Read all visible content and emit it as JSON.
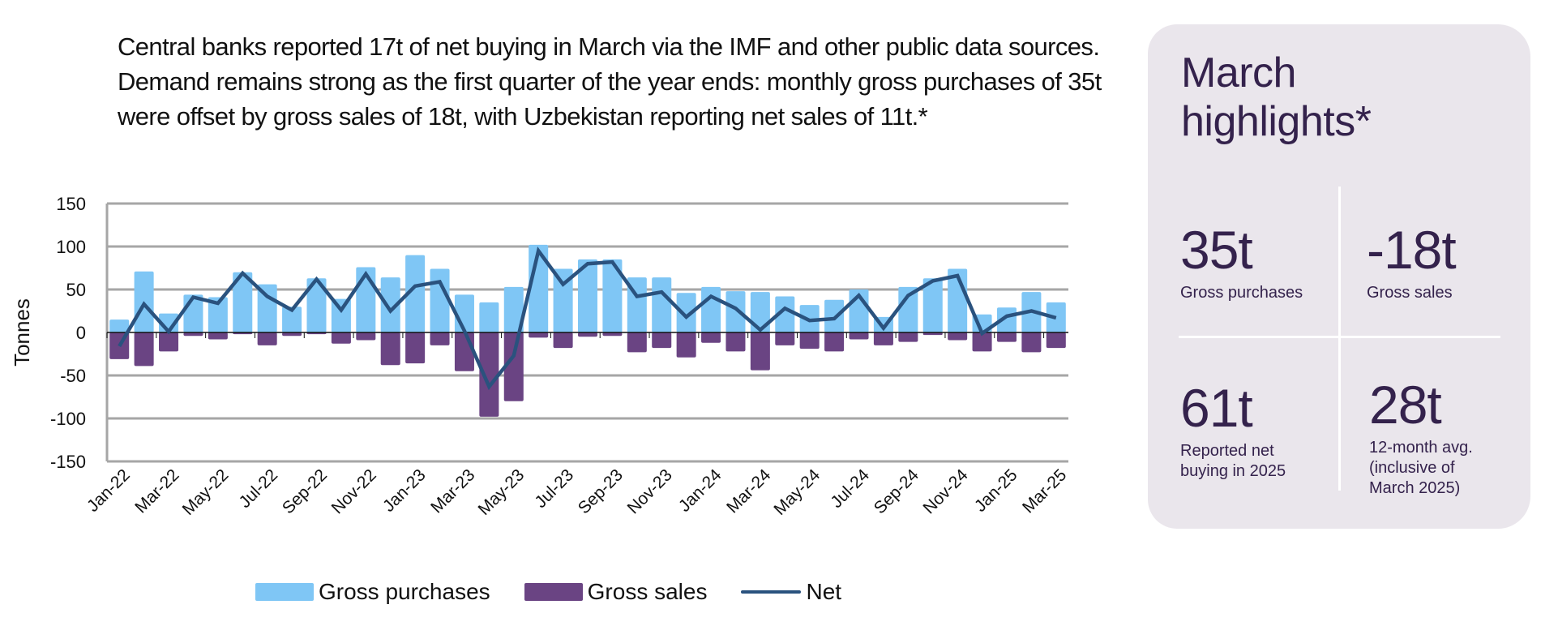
{
  "intro": {
    "text": "Central banks reported 17t of net buying in March via the IMF and other public data sources. Demand remains strong as the first quarter of the year ends: monthly gross purchases of 35t were offset by gross sales of 18t, with Uzbekistan reporting net sales of 11t.*"
  },
  "colors": {
    "gross_purchases": "#7FC6F5",
    "gross_sales": "#6A4483",
    "net": "#2A527E",
    "gridline": "#A6A6A6",
    "panel_bg": "#EAE6EC",
    "panel_text": "#34224C"
  },
  "chart_data": {
    "type": "bar",
    "title": "",
    "xlabel": "",
    "ylabel": "Tonnes",
    "ylim": [
      -150,
      150
    ],
    "yticks": [
      150,
      100,
      50,
      0,
      -50,
      -100,
      -150
    ],
    "grid": true,
    "legend_position": "bottom",
    "categories": [
      "Jan-22",
      "Feb-22",
      "Mar-22",
      "Apr-22",
      "May-22",
      "Jun-22",
      "Jul-22",
      "Aug-22",
      "Sep-22",
      "Oct-22",
      "Nov-22",
      "Dec-22",
      "Jan-23",
      "Feb-23",
      "Mar-23",
      "Apr-23",
      "May-23",
      "Jun-23",
      "Jul-23",
      "Aug-23",
      "Sep-23",
      "Oct-23",
      "Nov-23",
      "Dec-23",
      "Jan-24",
      "Feb-24",
      "Mar-24",
      "Apr-24",
      "May-24",
      "Jun-24",
      "Jul-24",
      "Aug-24",
      "Sep-24",
      "Oct-24",
      "Nov-24",
      "Dec-24",
      "Jan-25",
      "Feb-25",
      "Mar-25"
    ],
    "xtick_labels": [
      "Jan-22",
      "Mar-22",
      "May-22",
      "Jul-22",
      "Sep-22",
      "Nov-22",
      "Jan-23",
      "Mar-23",
      "May-23",
      "Jul-23",
      "Sep-23",
      "Nov-23",
      "Jan-24",
      "Mar-24",
      "May-24",
      "Jul-24",
      "Sep-24",
      "Nov-24",
      "Jan-25",
      "Mar-25"
    ],
    "series": [
      {
        "name": "Gross purchases",
        "kind": "bar",
        "values": [
          15,
          71,
          22,
          44,
          41,
          70,
          56,
          30,
          63,
          39,
          76,
          64,
          90,
          74,
          44,
          35,
          53,
          102,
          74,
          85,
          85,
          64,
          64,
          46,
          53,
          48,
          47,
          42,
          32,
          38,
          50,
          18,
          53,
          63,
          74,
          21,
          29,
          47,
          35
        ]
      },
      {
        "name": "Gross sales",
        "kind": "bar",
        "values": [
          -31,
          -39,
          -22,
          -4,
          -8,
          -2,
          -15,
          -4,
          -2,
          -13,
          -9,
          -38,
          -36,
          -15,
          -45,
          -98,
          -80,
          -6,
          -18,
          -5,
          -4,
          -23,
          -18,
          -29,
          -12,
          -22,
          -44,
          -15,
          -19,
          -22,
          -8,
          -15,
          -11,
          -3,
          -9,
          -22,
          -11,
          -23,
          -18
        ]
      },
      {
        "name": "Net",
        "kind": "line",
        "values": [
          -16,
          33,
          1,
          41,
          34,
          69,
          42,
          26,
          62,
          26,
          68,
          25,
          54,
          59,
          2,
          -63,
          -27,
          95,
          56,
          80,
          82,
          42,
          47,
          18,
          42,
          28,
          3,
          28,
          14,
          16,
          43,
          5,
          43,
          60,
          66,
          -1,
          19,
          25,
          17
        ]
      }
    ]
  },
  "legend": {
    "items": [
      {
        "label": "Gross purchases"
      },
      {
        "label": "Gross sales"
      },
      {
        "label": "Net"
      }
    ]
  },
  "panel": {
    "title_line1": "March",
    "title_line2": "highlights*",
    "stats": [
      {
        "value": "35t",
        "label": "Gross purchases"
      },
      {
        "value": "-18t",
        "label": "Gross sales"
      },
      {
        "value": "61t",
        "label": "Reported net\nbuying in 2025"
      },
      {
        "value": "28t",
        "label": "12-month avg.\n(inclusive of\nMarch 2025)"
      }
    ]
  }
}
